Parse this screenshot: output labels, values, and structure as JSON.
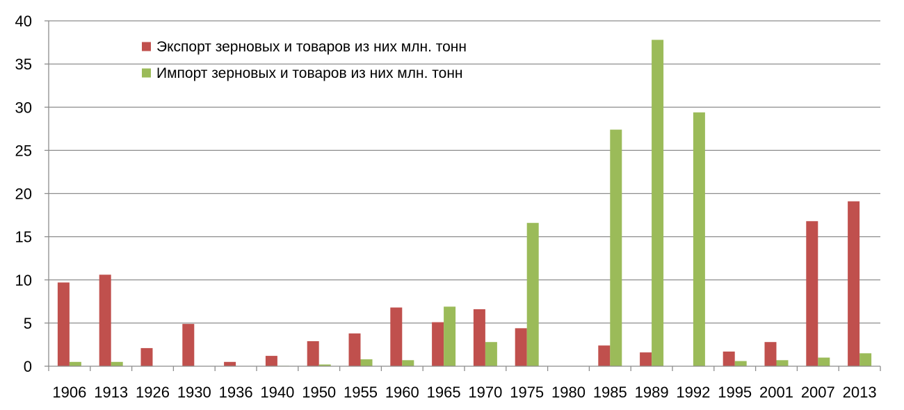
{
  "chart_data": {
    "type": "bar",
    "categories": [
      "1906",
      "1913",
      "1926",
      "1930",
      "1936",
      "1940",
      "1950",
      "1955",
      "1960",
      "1965",
      "1970",
      "1975",
      "1980",
      "1985",
      "1989",
      "1992",
      "1995",
      "2001",
      "2007",
      "2013"
    ],
    "series": [
      {
        "name": "Экспорт зерновых и товаров из них млн. тонн",
        "color": "#c0504d",
        "values": [
          9.7,
          10.6,
          2.1,
          4.9,
          0.5,
          1.2,
          2.9,
          3.8,
          6.8,
          5.1,
          6.6,
          4.4,
          0,
          2.4,
          1.6,
          0,
          1.7,
          2.8,
          16.8,
          19.1
        ]
      },
      {
        "name": "Импорт зерновых и товаров из них млн. тонн",
        "color": "#9bbb59",
        "values": [
          0.5,
          0.5,
          0,
          0,
          0,
          0.05,
          0.2,
          0.8,
          0.7,
          6.9,
          2.8,
          16.6,
          0,
          27.4,
          37.8,
          29.4,
          0.6,
          0.7,
          1.0,
          1.5
        ]
      }
    ],
    "ylim": [
      0,
      40
    ],
    "yticks": [
      0,
      5,
      10,
      15,
      20,
      25,
      30,
      35,
      40
    ],
    "grid": true,
    "legend_position": "top-left",
    "title": "",
    "xlabel": "",
    "ylabel": ""
  }
}
